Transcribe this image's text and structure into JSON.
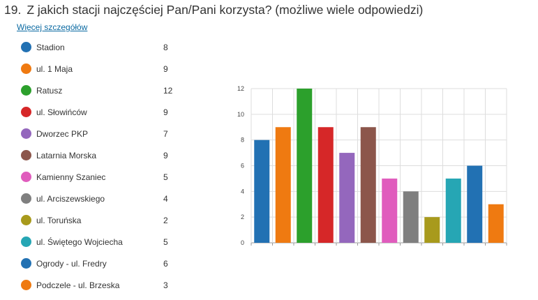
{
  "question": {
    "number": "19.",
    "text": "Z jakich stacji najczęściej Pan/Pani korzysta? (możliwe wiele odpowiedzi)"
  },
  "more_details_link": "Więcej szczegółów",
  "chart_data": {
    "type": "bar",
    "categories": [
      "Stadion",
      "ul. 1 Maja",
      "Ratusz",
      "ul. Słowińców",
      "Dworzec PKP",
      "Latarnia Morska",
      "Kamienny Szaniec",
      "ul. Arciszewskiego",
      "ul. Toruńska",
      "ul. Świętego Wojciecha",
      "Ogrody - ul. Fredry",
      "Podczele - ul. Brzeska"
    ],
    "values": [
      8,
      9,
      12,
      9,
      7,
      9,
      5,
      4,
      2,
      5,
      6,
      3
    ],
    "colors": [
      "#2271b3",
      "#ef7a11",
      "#2ca02c",
      "#d62728",
      "#9467bd",
      "#8c564b",
      "#e05cbd",
      "#7f7f7f",
      "#a89a1c",
      "#26a6b4",
      "#2271b3",
      "#ef7a11"
    ],
    "ylim": [
      0,
      12
    ],
    "yticks": [
      "0",
      "2",
      "4",
      "6",
      "8",
      "10",
      "12"
    ],
    "grid": true,
    "legend": "left"
  }
}
